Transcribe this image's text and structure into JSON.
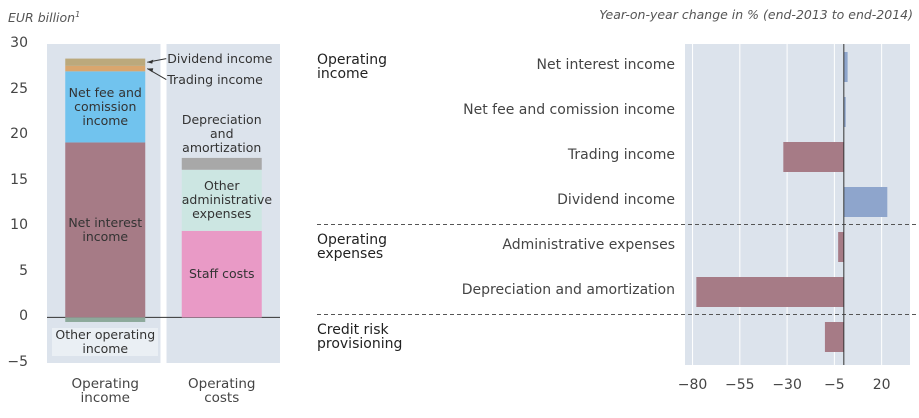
{
  "chart_data": [
    {
      "type": "stacked_bar",
      "y_label": "EUR billion",
      "y_label_note": "1",
      "categories": [
        "Operating income",
        "Operating costs"
      ],
      "series": [
        {
          "name": "Net interest income",
          "color": "#a67b86",
          "values": [
            19.2,
            null
          ]
        },
        {
          "name": "Net fee and comission income",
          "color": "#71c3ee",
          "values": [
            7.8,
            null
          ]
        },
        {
          "name": "Trading income",
          "color": "#d9a66e",
          "values": [
            0.6,
            null
          ]
        },
        {
          "name": "Dividend income",
          "color": "#bba97c",
          "values": [
            0.8,
            null
          ]
        },
        {
          "name": "Other operating income",
          "color": "#8da99b",
          "values": [
            -0.5,
            null
          ]
        },
        {
          "name": "Staff costs",
          "color": "#e99ac6",
          "values": [
            null,
            9.5
          ]
        },
        {
          "name": "Other administrative expenses",
          "color": "#cce6e2",
          "values": [
            null,
            6.7
          ]
        },
        {
          "name": "Depreciation and amortization",
          "color": "#a8a8a8",
          "values": [
            null,
            1.3
          ]
        }
      ],
      "ylim": [
        -5,
        30
      ],
      "yticks": [
        {
          "value": -5,
          "label": "−5"
        },
        0,
        5,
        10,
        15,
        20,
        25,
        30
      ]
    },
    {
      "type": "hbar",
      "subtitle": "Year-on-year change in % (end-2013 to end-2014)",
      "groups": [
        {
          "name": "Operating income",
          "categories": [
            "Net interest income",
            "Net fee and comission income",
            "Trading income",
            "Dividend income"
          ],
          "values": [
            2,
            1,
            -32,
            23
          ]
        },
        {
          "name": "Operating expenses",
          "categories": [
            "Administrative expenses",
            "Depreciation and amortization"
          ],
          "values": [
            -3,
            -78
          ]
        },
        {
          "name": "Credit risk provisioning",
          "categories": [
            null
          ],
          "values": [
            -10
          ]
        }
      ],
      "xlim": [
        -84,
        35
      ],
      "xticks": [
        {
          "value": -80,
          "label": "−80"
        },
        {
          "value": -55,
          "label": "−55"
        },
        {
          "value": -30,
          "label": "−30"
        },
        {
          "value": -5,
          "label": "−5"
        },
        20
      ],
      "positive_color": "#8ea5cc",
      "negative_color": "#a67b86"
    }
  ]
}
